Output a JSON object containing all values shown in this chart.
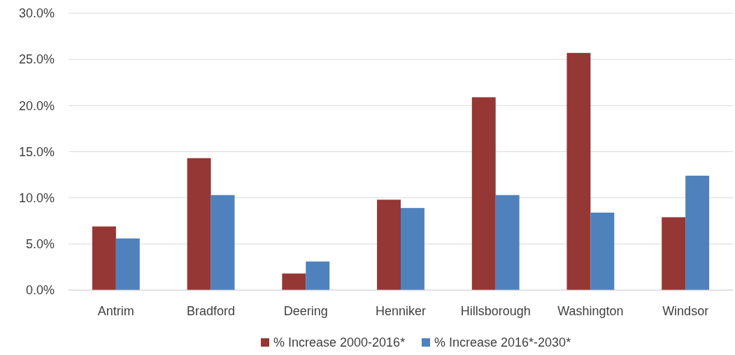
{
  "chart_data": {
    "type": "bar",
    "categories": [
      "Antrim",
      "Bradford",
      "Deering",
      "Henniker",
      "Hillsborough",
      "Washington",
      "Windsor"
    ],
    "series": [
      {
        "name": "% Increase 2000-2016*",
        "color": "#953735",
        "values": [
          6.9,
          14.3,
          1.8,
          9.8,
          20.9,
          25.7,
          7.9
        ]
      },
      {
        "name": "% Increase 2016*-2030*",
        "color": "#4f81bd",
        "values": [
          5.6,
          10.3,
          3.1,
          8.9,
          10.3,
          8.4,
          12.4
        ]
      }
    ],
    "ylim": [
      0,
      30
    ],
    "yticks": [
      {
        "value": 0,
        "label": "0.0%"
      },
      {
        "value": 5,
        "label": "5.0%"
      },
      {
        "value": 10,
        "label": "10.0%"
      },
      {
        "value": 15,
        "label": "15.0%"
      },
      {
        "value": 20,
        "label": "20.0%"
      },
      {
        "value": 25,
        "label": "25.0%"
      },
      {
        "value": 30,
        "label": "30.0%"
      }
    ],
    "grid": "y",
    "legend": "bottom"
  }
}
